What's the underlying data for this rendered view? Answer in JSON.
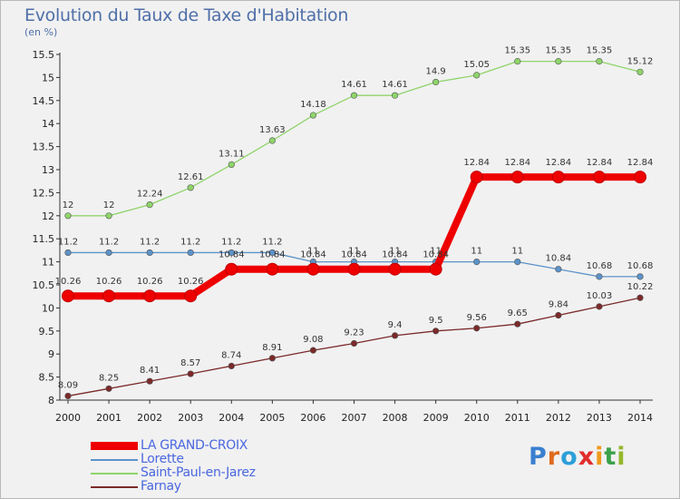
{
  "title": "Evolution du Taux de Taxe d'Habitation",
  "unit": "(en %)",
  "logo": {
    "letters": [
      "P",
      "r",
      "o",
      "x",
      "i",
      "t",
      "i"
    ],
    "colors": [
      "#3a7fd0",
      "#e06a1e",
      "#2c9fd8",
      "#e22d2d",
      "#ef9a1a",
      "#3aa14a",
      "#93b82a"
    ]
  },
  "chart_data": {
    "type": "line",
    "x": [
      2000,
      2001,
      2002,
      2003,
      2004,
      2005,
      2006,
      2007,
      2008,
      2009,
      2010,
      2011,
      2012,
      2013,
      2014
    ],
    "ylim": [
      8,
      15.5
    ],
    "yticks": [
      "8",
      "8.5",
      "9",
      "9.5",
      "10",
      "10.5",
      "11",
      "11.5",
      "12",
      "12.5",
      "13",
      "13.5",
      "14",
      "14.5",
      "15",
      "15.5"
    ],
    "grid": false,
    "legend": "bottom",
    "series": [
      {
        "name": "LA GRAND-CROIX",
        "color": "#ee0000",
        "values": [
          10.26,
          10.26,
          10.26,
          10.26,
          10.84,
          10.84,
          10.84,
          10.84,
          10.84,
          10.84,
          12.84,
          12.84,
          12.84,
          12.84,
          12.84
        ],
        "labels": [
          "10.26",
          "10.26",
          "10.26",
          "10.26",
          "10.84",
          "10.84",
          "10.84",
          "10.84",
          "10.84",
          "10.84",
          "12.84",
          "12.84",
          "12.84",
          "12.84",
          "12.84"
        ]
      },
      {
        "name": "Lorette",
        "color": "#5b93c9",
        "values": [
          11.2,
          11.2,
          11.2,
          11.2,
          11.2,
          11.2,
          11,
          11,
          11,
          11,
          11,
          11,
          10.84,
          10.68,
          10.68
        ],
        "labels": [
          "11.2",
          "11.2",
          "11.2",
          "11.2",
          "11.2",
          "11.2",
          "11",
          "11",
          "11",
          "11",
          "11",
          "11",
          "10.84",
          "10.68",
          "10.68"
        ]
      },
      {
        "name": "Saint-Paul-en-Jarez",
        "color": "#8fd46a",
        "values": [
          12,
          12,
          12.24,
          12.61,
          13.11,
          13.63,
          14.18,
          14.61,
          14.61,
          14.9,
          15.05,
          15.35,
          15.35,
          15.35,
          15.12
        ],
        "labels": [
          "12",
          "12",
          "12.24",
          "12.61",
          "13.11",
          "13.63",
          "14.18",
          "14.61",
          "14.61",
          "14.9",
          "15.05",
          "15.35",
          "15.35",
          "15.35",
          "15.12"
        ]
      },
      {
        "name": "Farnay",
        "color": "#7b2a2a",
        "values": [
          8.09,
          8.25,
          8.41,
          8.57,
          8.74,
          8.91,
          9.08,
          9.23,
          9.4,
          9.5,
          9.56,
          9.65,
          9.84,
          10.03,
          10.22
        ],
        "labels": [
          "8.09",
          "8.25",
          "8.41",
          "8.57",
          "8.74",
          "8.91",
          "9.08",
          "9.23",
          "9.4",
          "9.5",
          "9.56",
          "9.65",
          "9.84",
          "10.03",
          "10.22"
        ]
      }
    ]
  }
}
